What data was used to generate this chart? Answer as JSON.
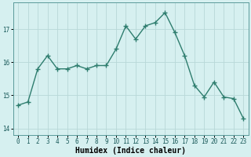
{
  "x": [
    0,
    1,
    2,
    3,
    4,
    5,
    6,
    7,
    8,
    9,
    10,
    11,
    12,
    13,
    14,
    15,
    16,
    17,
    18,
    19,
    20,
    21,
    22,
    23
  ],
  "y": [
    14.7,
    14.8,
    15.8,
    16.2,
    15.8,
    15.8,
    15.9,
    15.8,
    15.9,
    15.9,
    16.4,
    17.1,
    16.7,
    17.1,
    17.2,
    17.5,
    16.9,
    16.2,
    15.3,
    14.95,
    15.4,
    14.95,
    14.9,
    14.3
  ],
  "line_color": "#2e7d6e",
  "marker": "+",
  "marker_size": 4,
  "bg_color": "#d6f0f0",
  "grid_color": "#b8d8d8",
  "xlabel": "Humidex (Indice chaleur)",
  "ylabel": "",
  "xlim": [
    -0.5,
    23.5
  ],
  "ylim": [
    13.8,
    17.8
  ],
  "yticks": [
    14,
    15,
    16,
    17
  ],
  "xticks": [
    0,
    1,
    2,
    3,
    4,
    5,
    6,
    7,
    8,
    9,
    10,
    11,
    12,
    13,
    14,
    15,
    16,
    17,
    18,
    19,
    20,
    21,
    22,
    23
  ],
  "tick_fontsize": 5.5,
  "xlabel_fontsize": 7.0,
  "line_width": 1.0
}
